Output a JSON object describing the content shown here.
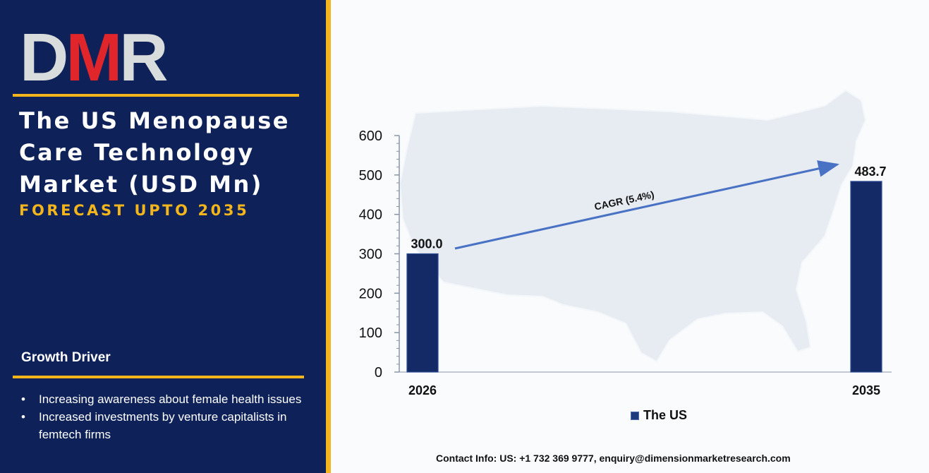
{
  "logo": {
    "text": "DMR"
  },
  "panel": {
    "title": "The US Menopause Care Technology Market (USD Mn)",
    "subtitle": "FORECAST UPTO 2035",
    "driver_heading": "Growth Driver",
    "drivers": [
      "Increasing awareness about female health issues",
      "Increased investments by venture capitalists in femtech firms"
    ]
  },
  "chart_data": {
    "type": "bar",
    "categories": [
      "2026",
      "2035"
    ],
    "series": [
      {
        "name": "The US",
        "values": [
          300.0,
          483.7
        ]
      }
    ],
    "data_labels": [
      "300.0",
      "483.7"
    ],
    "ylim": [
      0,
      600
    ],
    "yticks": [
      0,
      100,
      200,
      300,
      400,
      500,
      600
    ],
    "annotation": "CAGR (5.4%)",
    "legend_position": "bottom",
    "grid": false
  },
  "contact": "Contact Info: US: +1 732 369 9777, enquiry@dimensionmarketresearch.com",
  "colors": {
    "panel_bg": "#0e2259",
    "accent_gold": "#f2b61c",
    "bar_fill": "#142a66",
    "arrow": "#4a72c4"
  }
}
